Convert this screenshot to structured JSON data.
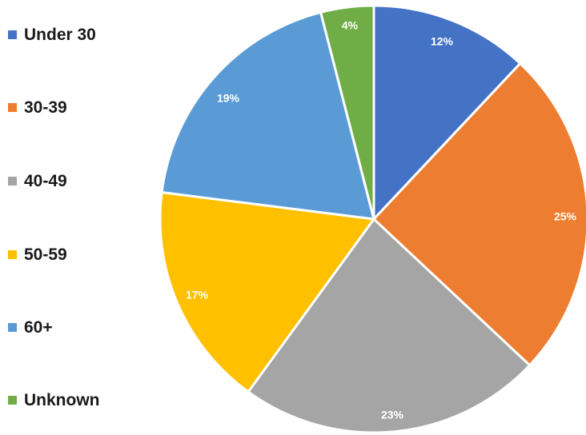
{
  "chart_data": {
    "type": "pie",
    "title": "",
    "legend_position": "left",
    "start_angle_deg": 0,
    "direction": "clockwise",
    "categories": [
      "Under 30",
      "30-39",
      "40-49",
      "50-59",
      "60+",
      "Unknown"
    ],
    "values": [
      12,
      25,
      23,
      17,
      19,
      4
    ],
    "labels": [
      "12%",
      "25%",
      "23%",
      "17%",
      "19%",
      "4%"
    ],
    "colors": [
      "#4472C4",
      "#ED7D31",
      "#A5A5A5",
      "#FFC000",
      "#5B9BD5",
      "#70AD47"
    ]
  }
}
